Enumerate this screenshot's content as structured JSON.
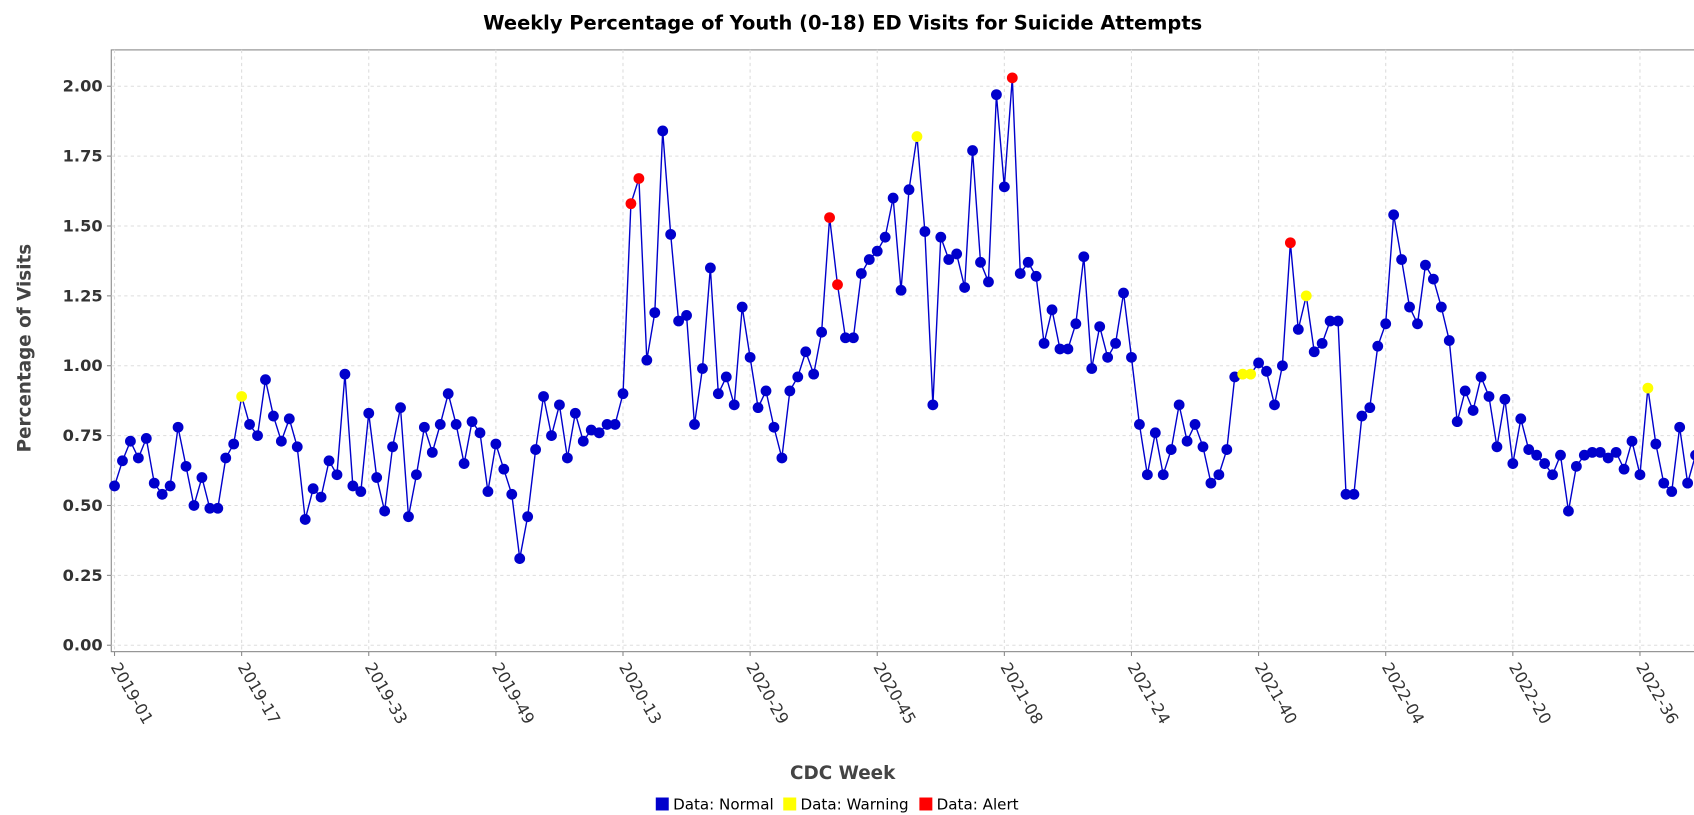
{
  "chart_data": {
    "type": "line",
    "title": "Weekly Percentage of Youth (0-18) ED Visits for Suicide Attempts",
    "x_label": "CDC Week",
    "y_label": "Percentage of Visits",
    "categories": [
      "2019-01",
      null,
      null,
      null,
      null,
      null,
      null,
      null,
      null,
      null,
      null,
      null,
      null,
      null,
      null,
      null,
      "2019-17",
      null,
      null,
      null,
      null,
      null,
      null,
      null,
      null,
      null,
      null,
      null,
      null,
      null,
      null,
      null,
      "2019-33",
      null,
      null,
      null,
      null,
      null,
      null,
      null,
      null,
      null,
      null,
      null,
      null,
      null,
      null,
      null,
      "2019-49",
      null,
      null,
      null,
      null,
      null,
      null,
      null,
      null,
      null,
      null,
      null,
      null,
      null,
      null,
      null,
      "2020-13",
      null,
      null,
      null,
      null,
      null,
      null,
      null,
      null,
      null,
      null,
      null,
      null,
      null,
      null,
      null,
      "2020-29",
      null,
      null,
      null,
      null,
      null,
      null,
      null,
      null,
      null,
      null,
      null,
      null,
      null,
      null,
      null,
      "2020-45",
      null,
      null,
      null,
      null,
      null,
      null,
      null,
      null,
      null,
      null,
      null,
      null,
      null,
      null,
      null,
      "2021-08",
      null,
      null,
      null,
      null,
      null,
      null,
      null,
      null,
      null,
      null,
      null,
      null,
      null,
      null,
      null,
      "2021-24",
      null,
      null,
      null,
      null,
      null,
      null,
      null,
      null,
      null,
      null,
      null,
      null,
      null,
      null,
      null,
      "2021-40",
      null,
      null,
      null,
      null,
      null,
      null,
      null,
      null,
      null,
      null,
      null,
      null,
      null,
      null,
      null,
      "2022-04",
      null,
      null,
      null,
      null,
      null,
      null,
      null,
      null,
      null,
      null,
      null,
      null,
      null,
      null,
      null,
      "2022-20",
      null,
      null,
      null,
      null,
      null,
      null,
      null,
      null,
      null,
      null,
      null,
      null,
      null,
      null,
      null,
      "2022-36",
      null,
      null,
      null,
      null,
      null,
      null,
      null
    ],
    "series": [
      {
        "name": "Data",
        "color": "#0000cc",
        "values": [
          0.57,
          0.66,
          0.73,
          0.67,
          0.74,
          0.58,
          0.54,
          0.57,
          0.78,
          0.64,
          0.5,
          0.6,
          0.49,
          0.49,
          0.67,
          0.72,
          0.89,
          0.79,
          0.75,
          0.95,
          0.82,
          0.73,
          0.81,
          0.71,
          0.45,
          0.56,
          0.53,
          0.66,
          0.61,
          0.97,
          0.57,
          0.55,
          0.83,
          0.6,
          0.48,
          0.71,
          0.85,
          0.46,
          0.61,
          0.78,
          0.69,
          0.79,
          0.9,
          0.79,
          0.65,
          0.8,
          0.76,
          0.55,
          0.72,
          0.63,
          0.54,
          0.31,
          0.46,
          0.7,
          0.89,
          0.75,
          0.86,
          0.67,
          0.83,
          0.73,
          0.77,
          0.76,
          0.79,
          0.79,
          0.9,
          1.58,
          1.67,
          1.02,
          1.19,
          1.84,
          1.47,
          1.16,
          1.18,
          0.79,
          0.99,
          1.35,
          0.9,
          0.96,
          0.86,
          1.21,
          1.03,
          0.85,
          0.91,
          0.78,
          0.67,
          0.91,
          0.96,
          1.05,
          0.97,
          1.12,
          1.53,
          1.29,
          1.1,
          1.1,
          1.33,
          1.38,
          1.41,
          1.46,
          1.6,
          1.27,
          1.63,
          1.82,
          1.48,
          0.86,
          1.46,
          1.38,
          1.4,
          1.28,
          1.77,
          1.37,
          1.3,
          1.97,
          1.64,
          2.03,
          1.33,
          1.37,
          1.32,
          1.08,
          1.2,
          1.06,
          1.06,
          1.15,
          1.39,
          0.99,
          1.14,
          1.03,
          1.08,
          1.26,
          1.03,
          0.79,
          0.61,
          0.76,
          0.61,
          0.7,
          0.86,
          0.73,
          0.79,
          0.71,
          0.58,
          0.61,
          0.7,
          0.96,
          0.97,
          0.97,
          1.01,
          0.98,
          0.86,
          1.0,
          1.44,
          1.13,
          1.25,
          1.05,
          1.08,
          1.16,
          1.16,
          0.54,
          0.54,
          0.82,
          0.85,
          1.07,
          1.15,
          1.54,
          1.38,
          1.21,
          1.15,
          1.36,
          1.31,
          1.21,
          1.09,
          0.8,
          0.91,
          0.84,
          0.96,
          0.89,
          0.71,
          0.88,
          0.65,
          0.81,
          0.7,
          0.68,
          0.65,
          0.61,
          0.68,
          0.48,
          0.64,
          0.68,
          0.69,
          0.69,
          0.67,
          0.69,
          0.63,
          0.73,
          0.61,
          0.92,
          0.72,
          0.58,
          0.55,
          0.78,
          0.58,
          0.68
        ]
      }
    ],
    "point_status": [
      0,
      0,
      0,
      0,
      0,
      0,
      0,
      0,
      0,
      0,
      0,
      0,
      0,
      0,
      0,
      0,
      1,
      0,
      0,
      0,
      0,
      0,
      0,
      0,
      0,
      0,
      0,
      0,
      0,
      0,
      0,
      0,
      0,
      0,
      0,
      0,
      0,
      0,
      0,
      0,
      0,
      0,
      0,
      0,
      0,
      0,
      0,
      0,
      0,
      0,
      0,
      0,
      0,
      0,
      0,
      0,
      0,
      0,
      0,
      0,
      0,
      0,
      0,
      0,
      0,
      2,
      2,
      0,
      0,
      0,
      0,
      0,
      0,
      0,
      0,
      0,
      0,
      0,
      0,
      0,
      0,
      0,
      0,
      0,
      0,
      0,
      0,
      0,
      0,
      0,
      2,
      2,
      0,
      0,
      0,
      0,
      0,
      0,
      0,
      0,
      0,
      1,
      0,
      0,
      0,
      0,
      0,
      0,
      0,
      0,
      0,
      0,
      0,
      2,
      0,
      0,
      0,
      0,
      0,
      0,
      0,
      0,
      0,
      0,
      0,
      0,
      0,
      0,
      0,
      0,
      0,
      0,
      0,
      0,
      0,
      0,
      0,
      0,
      0,
      0,
      0,
      0,
      1,
      1,
      0,
      0,
      0,
      0,
      2,
      0,
      1,
      0,
      0,
      0,
      0,
      0,
      0,
      0,
      0,
      0,
      0,
      0,
      0,
      0,
      0,
      0,
      0,
      0,
      0,
      0,
      0,
      0,
      0,
      0,
      0,
      0,
      0,
      0,
      0,
      0,
      0,
      0,
      0,
      0,
      0,
      0,
      0,
      0,
      0,
      0,
      0,
      0,
      0,
      1,
      0,
      0,
      0,
      0,
      0,
      0
    ],
    "legend": [
      {
        "name": "Data: Normal",
        "color": "#0000cc"
      },
      {
        "name": "Data: Warning",
        "color": "#ffff00"
      },
      {
        "name": "Data: Alert",
        "color": "#ff0000"
      }
    ],
    "ylim": [
      -0.023,
      2.13
    ],
    "yticks": [
      {
        "value": 0,
        "label": "0.00"
      },
      {
        "value": 0.25,
        "label": "0.25"
      },
      {
        "value": 0.5,
        "label": "0.50"
      },
      {
        "value": 0.75,
        "label": "0.75"
      },
      {
        "value": 1,
        "label": "1.00"
      },
      {
        "value": 1.25,
        "label": "1.25"
      },
      {
        "value": 1.5,
        "label": "1.50"
      },
      {
        "value": 1.75,
        "label": "1.75"
      },
      {
        "value": 2,
        "label": "2.00"
      }
    ],
    "grid": true
  }
}
